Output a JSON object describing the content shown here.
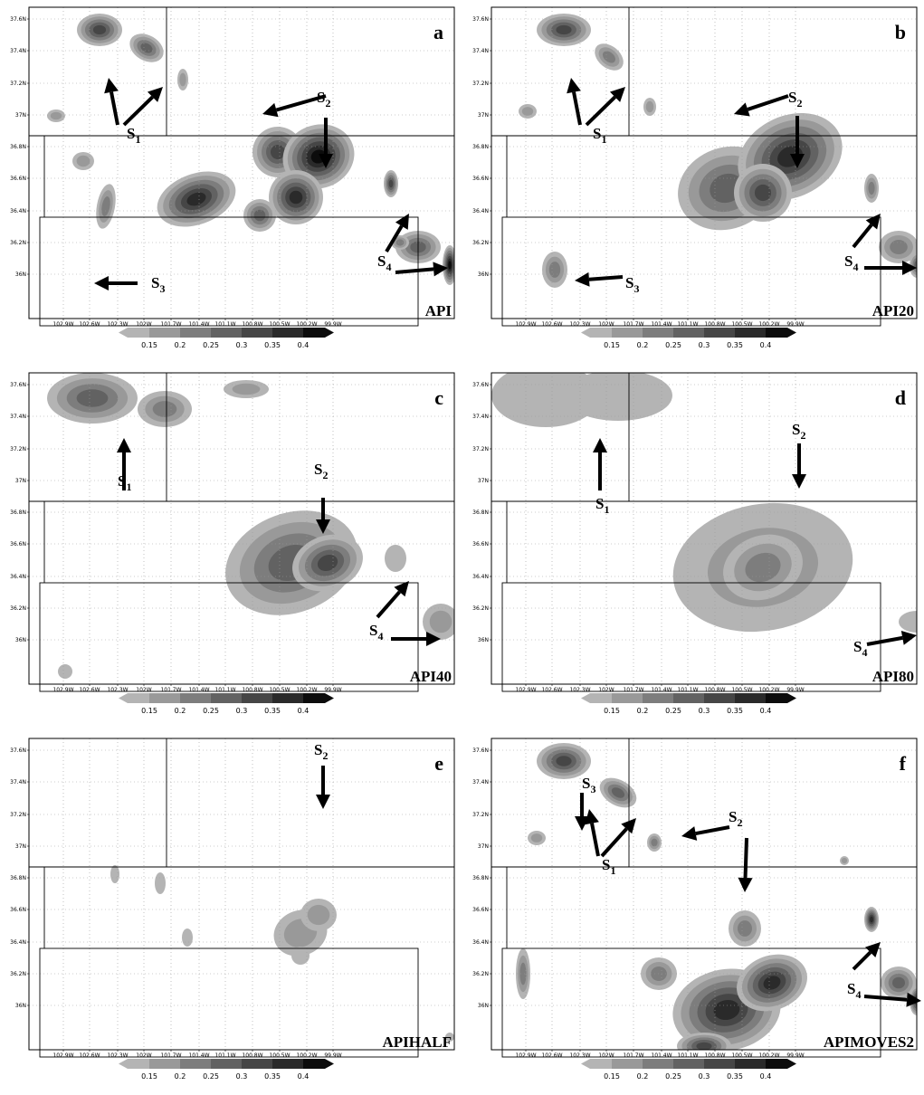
{
  "lat_ticks": [
    "37.6N",
    "37.4N",
    "37.2N",
    "37N",
    "36.8N",
    "36.6N",
    "36.4N",
    "36.2N",
    "36N"
  ],
  "lon_ticks": [
    "102.9W",
    "102.6W",
    "102.3W",
    "102W",
    "101.7W",
    "101.4W",
    "101.1W",
    "100.8W",
    "100.5W",
    "100.2W",
    "99.9W"
  ],
  "colorbar_labels": [
    "0.15",
    "0.2",
    "0.25",
    "0.3",
    "0.35",
    "0.4"
  ],
  "colorbar_colors": [
    "#b4b4b4",
    "#999999",
    "#7d7d7d",
    "#626262",
    "#464646",
    "#2a2a2a",
    "#0c0c0c"
  ],
  "chart_data": [
    {
      "type": "heatmap",
      "letter": "a",
      "caption": "API",
      "annotations": [
        "S1",
        "S2",
        "S3",
        "S4"
      ]
    },
    {
      "type": "heatmap",
      "letter": "b",
      "caption": "API20",
      "annotations": [
        "S1",
        "S2",
        "S3",
        "S4"
      ]
    },
    {
      "type": "heatmap",
      "letter": "c",
      "caption": "API40",
      "annotations": [
        "S1",
        "S2",
        "S4"
      ]
    },
    {
      "type": "heatmap",
      "letter": "d",
      "caption": "API80",
      "annotations": [
        "S1",
        "S2",
        "S4"
      ]
    },
    {
      "type": "heatmap",
      "letter": "e",
      "caption": "APIHALF",
      "annotations": [
        "S2"
      ]
    },
    {
      "type": "heatmap",
      "letter": "f",
      "caption": "APIMOVES2",
      "annotations": [
        "S1",
        "S2",
        "S3",
        "S4"
      ]
    }
  ]
}
